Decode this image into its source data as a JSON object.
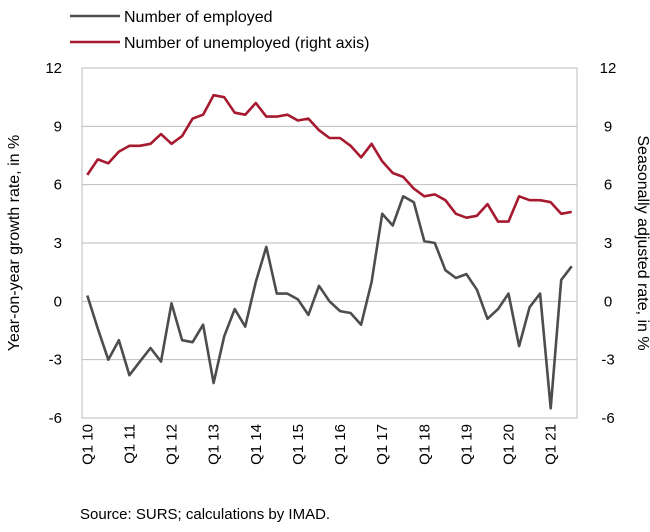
{
  "chart_data": {
    "type": "line",
    "source_note": "Source: SURS; calculations by IMAD.",
    "ylabel_left": "Year-on-year growth rate, in %",
    "ylabel_right": "Seasonally adjusted rate, in %",
    "ylim": [
      -6,
      12
    ],
    "yticks": [
      12,
      9,
      6,
      3,
      0,
      -3,
      -6
    ],
    "y_tick_labels": [
      "12",
      "9",
      "6",
      "3",
      "0",
      "-3",
      "-6"
    ],
    "x_labels": [
      "Q1 10",
      "Q1 11",
      "Q1 12",
      "Q1 13",
      "Q1 14",
      "Q1 15",
      "Q1 16",
      "Q1 17",
      "Q1 18",
      "Q1 19",
      "Q1 20",
      "Q1 21"
    ],
    "grid": true,
    "legend_position": "top-left",
    "series": [
      {
        "name": "Number of employed",
        "axis": "left",
        "color": "#4d4d4d",
        "values": [
          0.3,
          -1.4,
          -3.0,
          -2.0,
          -3.8,
          -3.1,
          -2.4,
          -3.1,
          -0.1,
          -2.0,
          -2.1,
          -1.2,
          -4.2,
          -1.8,
          -0.4,
          -1.3,
          1.0,
          2.8,
          0.4,
          0.4,
          0.1,
          -0.7,
          0.8,
          0.0,
          -0.5,
          -0.6,
          -1.2,
          1.0,
          4.5,
          3.9,
          5.4,
          5.1,
          3.1,
          3.0,
          1.6,
          1.2,
          1.4,
          0.6,
          -0.9,
          -0.4,
          0.4,
          -2.3,
          -0.3,
          0.4,
          -5.5,
          1.1,
          1.8
        ]
      },
      {
        "name": "Number of unemployed (right axis)",
        "axis": "right",
        "color": "#a6192e",
        "values": [
          6.5,
          7.3,
          7.1,
          7.7,
          8.0,
          8.0,
          8.1,
          8.6,
          8.1,
          8.5,
          9.4,
          9.6,
          10.6,
          10.5,
          9.7,
          9.6,
          10.2,
          9.5,
          9.5,
          9.6,
          9.3,
          9.4,
          8.8,
          8.4,
          8.4,
          8.0,
          7.4,
          8.1,
          7.2,
          6.6,
          6.4,
          5.8,
          5.4,
          5.5,
          5.2,
          4.5,
          4.3,
          4.4,
          5.0,
          4.1,
          4.1,
          5.4,
          5.2,
          5.2,
          5.1,
          4.5,
          4.6
        ]
      }
    ]
  }
}
